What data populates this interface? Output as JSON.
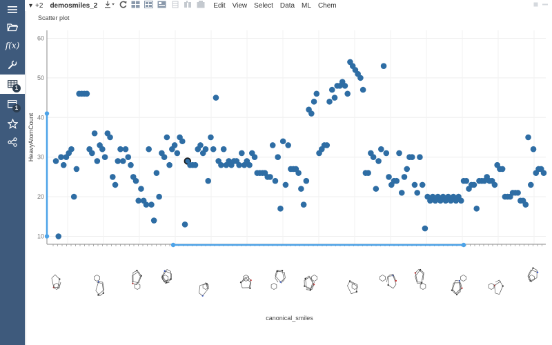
{
  "window": {
    "tab_count_label": "+2",
    "table_name": "demosmiles_2"
  },
  "toolbar": {
    "menus": [
      "Edit",
      "View",
      "Select",
      "Data",
      "ML",
      "Chem"
    ]
  },
  "sidebar": {
    "items": [
      {
        "icon": "hamburger-menu-icon"
      },
      {
        "icon": "open-folder-icon"
      },
      {
        "icon": "function-icon",
        "label": "f(x)"
      },
      {
        "icon": "wrench-icon"
      },
      {
        "icon": "table-icon",
        "badge": "1",
        "active": true
      },
      {
        "icon": "view-layouts-icon",
        "badge": "1"
      },
      {
        "icon": "star-icon"
      },
      {
        "icon": "share-icon"
      }
    ]
  },
  "viewer": {
    "title": "Scatter plot"
  },
  "chart_data": {
    "type": "scatter",
    "title": "",
    "xlabel": "canonical_smiles",
    "ylabel": "HeavyAtomCount",
    "ylim": [
      8,
      62
    ],
    "yticks": [
      10,
      20,
      30,
      40,
      50,
      60
    ],
    "grid": true,
    "color": "#2e6da4",
    "highlight_color": "#1a1a1a",
    "range_slider_color": "#4da3e8",
    "points": [
      {
        "i": 0,
        "y": 29
      },
      {
        "i": 1,
        "y": 10
      },
      {
        "i": 2,
        "y": 30
      },
      {
        "i": 3,
        "y": 28
      },
      {
        "i": 4,
        "y": 30
      },
      {
        "i": 5,
        "y": 31
      },
      {
        "i": 6,
        "y": 32
      },
      {
        "i": 7,
        "y": 20
      },
      {
        "i": 8,
        "y": 27
      },
      {
        "i": 9,
        "y": 46
      },
      {
        "i": 10,
        "y": 46
      },
      {
        "i": 11,
        "y": 46
      },
      {
        "i": 12,
        "y": 46
      },
      {
        "i": 13,
        "y": 32
      },
      {
        "i": 14,
        "y": 31
      },
      {
        "i": 15,
        "y": 36
      },
      {
        "i": 16,
        "y": 29
      },
      {
        "i": 17,
        "y": 33
      },
      {
        "i": 18,
        "y": 32
      },
      {
        "i": 19,
        "y": 30
      },
      {
        "i": 20,
        "y": 36
      },
      {
        "i": 21,
        "y": 35
      },
      {
        "i": 22,
        "y": 25
      },
      {
        "i": 23,
        "y": 23
      },
      {
        "i": 24,
        "y": 29
      },
      {
        "i": 25,
        "y": 32
      },
      {
        "i": 26,
        "y": 29
      },
      {
        "i": 27,
        "y": 32
      },
      {
        "i": 28,
        "y": 30
      },
      {
        "i": 29,
        "y": 28
      },
      {
        "i": 30,
        "y": 25
      },
      {
        "i": 31,
        "y": 24
      },
      {
        "i": 32,
        "y": 19
      },
      {
        "i": 33,
        "y": 22
      },
      {
        "i": 34,
        "y": 19
      },
      {
        "i": 35,
        "y": 18
      },
      {
        "i": 36,
        "y": 32
      },
      {
        "i": 37,
        "y": 18
      },
      {
        "i": 38,
        "y": 14
      },
      {
        "i": 39,
        "y": 26
      },
      {
        "i": 40,
        "y": 20
      },
      {
        "i": 41,
        "y": 31
      },
      {
        "i": 42,
        "y": 30
      },
      {
        "i": 43,
        "y": 35
      },
      {
        "i": 44,
        "y": 28
      },
      {
        "i": 45,
        "y": 32
      },
      {
        "i": 46,
        "y": 33
      },
      {
        "i": 47,
        "y": 31
      },
      {
        "i": 48,
        "y": 35
      },
      {
        "i": 49,
        "y": 34
      },
      {
        "i": 50,
        "y": 13
      },
      {
        "i": 51,
        "y": 29,
        "highlight": true
      },
      {
        "i": 52,
        "y": 28
      },
      {
        "i": 53,
        "y": 28
      },
      {
        "i": 54,
        "y": 28
      },
      {
        "i": 55,
        "y": 32
      },
      {
        "i": 56,
        "y": 33
      },
      {
        "i": 57,
        "y": 31
      },
      {
        "i": 58,
        "y": 32
      },
      {
        "i": 59,
        "y": 24
      },
      {
        "i": 60,
        "y": 35
      },
      {
        "i": 61,
        "y": 32
      },
      {
        "i": 62,
        "y": 45
      },
      {
        "i": 63,
        "y": 29
      },
      {
        "i": 64,
        "y": 28
      },
      {
        "i": 65,
        "y": 32
      },
      {
        "i": 66,
        "y": 28
      },
      {
        "i": 67,
        "y": 29
      },
      {
        "i": 68,
        "y": 28
      },
      {
        "i": 69,
        "y": 29
      },
      {
        "i": 70,
        "y": 29
      },
      {
        "i": 71,
        "y": 28
      },
      {
        "i": 72,
        "y": 31
      },
      {
        "i": 73,
        "y": 28
      },
      {
        "i": 74,
        "y": 29
      },
      {
        "i": 75,
        "y": 28
      },
      {
        "i": 76,
        "y": 31
      },
      {
        "i": 77,
        "y": 30
      },
      {
        "i": 78,
        "y": 26
      },
      {
        "i": 79,
        "y": 26
      },
      {
        "i": 80,
        "y": 26
      },
      {
        "i": 81,
        "y": 26
      },
      {
        "i": 82,
        "y": 25
      },
      {
        "i": 83,
        "y": 25
      },
      {
        "i": 84,
        "y": 33
      },
      {
        "i": 85,
        "y": 24
      },
      {
        "i": 86,
        "y": 30
      },
      {
        "i": 87,
        "y": 17
      },
      {
        "i": 88,
        "y": 34
      },
      {
        "i": 89,
        "y": 23
      },
      {
        "i": 90,
        "y": 33
      },
      {
        "i": 91,
        "y": 27
      },
      {
        "i": 92,
        "y": 27
      },
      {
        "i": 93,
        "y": 27
      },
      {
        "i": 94,
        "y": 26
      },
      {
        "i": 95,
        "y": 22
      },
      {
        "i": 96,
        "y": 18
      },
      {
        "i": 97,
        "y": 24
      },
      {
        "i": 98,
        "y": 42
      },
      {
        "i": 99,
        "y": 41
      },
      {
        "i": 100,
        "y": 44
      },
      {
        "i": 101,
        "y": 46
      },
      {
        "i": 102,
        "y": 31
      },
      {
        "i": 103,
        "y": 32
      },
      {
        "i": 104,
        "y": 33
      },
      {
        "i": 105,
        "y": 33
      },
      {
        "i": 106,
        "y": 44
      },
      {
        "i": 107,
        "y": 47
      },
      {
        "i": 108,
        "y": 45
      },
      {
        "i": 109,
        "y": 48
      },
      {
        "i": 110,
        "y": 48
      },
      {
        "i": 111,
        "y": 49
      },
      {
        "i": 112,
        "y": 48
      },
      {
        "i": 113,
        "y": 46
      },
      {
        "i": 114,
        "y": 54
      },
      {
        "i": 115,
        "y": 53
      },
      {
        "i": 116,
        "y": 52
      },
      {
        "i": 117,
        "y": 51
      },
      {
        "i": 118,
        "y": 50
      },
      {
        "i": 119,
        "y": 47
      },
      {
        "i": 120,
        "y": 26
      },
      {
        "i": 121,
        "y": 26
      },
      {
        "i": 122,
        "y": 31
      },
      {
        "i": 123,
        "y": 30
      },
      {
        "i": 124,
        "y": 22
      },
      {
        "i": 125,
        "y": 29
      },
      {
        "i": 126,
        "y": 32
      },
      {
        "i": 127,
        "y": 53
      },
      {
        "i": 128,
        "y": 31
      },
      {
        "i": 129,
        "y": 25
      },
      {
        "i": 130,
        "y": 23
      },
      {
        "i": 131,
        "y": 24
      },
      {
        "i": 132,
        "y": 24
      },
      {
        "i": 133,
        "y": 31
      },
      {
        "i": 134,
        "y": 21
      },
      {
        "i": 135,
        "y": 25
      },
      {
        "i": 136,
        "y": 27
      },
      {
        "i": 137,
        "y": 30
      },
      {
        "i": 138,
        "y": 30
      },
      {
        "i": 139,
        "y": 23
      },
      {
        "i": 140,
        "y": 21
      },
      {
        "i": 141,
        "y": 30
      },
      {
        "i": 142,
        "y": 23
      },
      {
        "i": 143,
        "y": 12
      },
      {
        "i": 144,
        "y": 20
      },
      {
        "i": 145,
        "y": 19
      },
      {
        "i": 146,
        "y": 20
      },
      {
        "i": 147,
        "y": 19
      },
      {
        "i": 148,
        "y": 20
      },
      {
        "i": 149,
        "y": 19
      },
      {
        "i": 150,
        "y": 20
      },
      {
        "i": 151,
        "y": 19
      },
      {
        "i": 152,
        "y": 20
      },
      {
        "i": 153,
        "y": 19
      },
      {
        "i": 154,
        "y": 20
      },
      {
        "i": 155,
        "y": 19
      },
      {
        "i": 156,
        "y": 20
      },
      {
        "i": 157,
        "y": 19
      },
      {
        "i": 158,
        "y": 24
      },
      {
        "i": 159,
        "y": 24
      },
      {
        "i": 160,
        "y": 22
      },
      {
        "i": 161,
        "y": 23
      },
      {
        "i": 162,
        "y": 23
      },
      {
        "i": 163,
        "y": 17
      },
      {
        "i": 164,
        "y": 24
      },
      {
        "i": 165,
        "y": 24
      },
      {
        "i": 166,
        "y": 24
      },
      {
        "i": 167,
        "y": 25
      },
      {
        "i": 168,
        "y": 24
      },
      {
        "i": 169,
        "y": 24
      },
      {
        "i": 170,
        "y": 23
      },
      {
        "i": 171,
        "y": 28
      },
      {
        "i": 172,
        "y": 27
      },
      {
        "i": 173,
        "y": 27
      },
      {
        "i": 174,
        "y": 20
      },
      {
        "i": 175,
        "y": 20
      },
      {
        "i": 176,
        "y": 20
      },
      {
        "i": 177,
        "y": 21
      },
      {
        "i": 178,
        "y": 21
      },
      {
        "i": 179,
        "y": 21
      },
      {
        "i": 180,
        "y": 19
      },
      {
        "i": 181,
        "y": 19
      },
      {
        "i": 182,
        "y": 18
      },
      {
        "i": 183,
        "y": 35
      },
      {
        "i": 184,
        "y": 23
      },
      {
        "i": 185,
        "y": 32
      },
      {
        "i": 186,
        "y": 26
      },
      {
        "i": 187,
        "y": 27
      },
      {
        "i": 188,
        "y": 27
      },
      {
        "i": 189,
        "y": 26
      }
    ],
    "x_molecule_ticks": [
      "molecule-1",
      "molecule-2",
      "molecule-3",
      "molecule-4",
      "molecule-5",
      "molecule-6",
      "molecule-7",
      "molecule-8",
      "molecule-9",
      "molecule-10",
      "molecule-11",
      "molecule-12",
      "molecule-13",
      "molecule-14",
      "molecule-15"
    ]
  }
}
